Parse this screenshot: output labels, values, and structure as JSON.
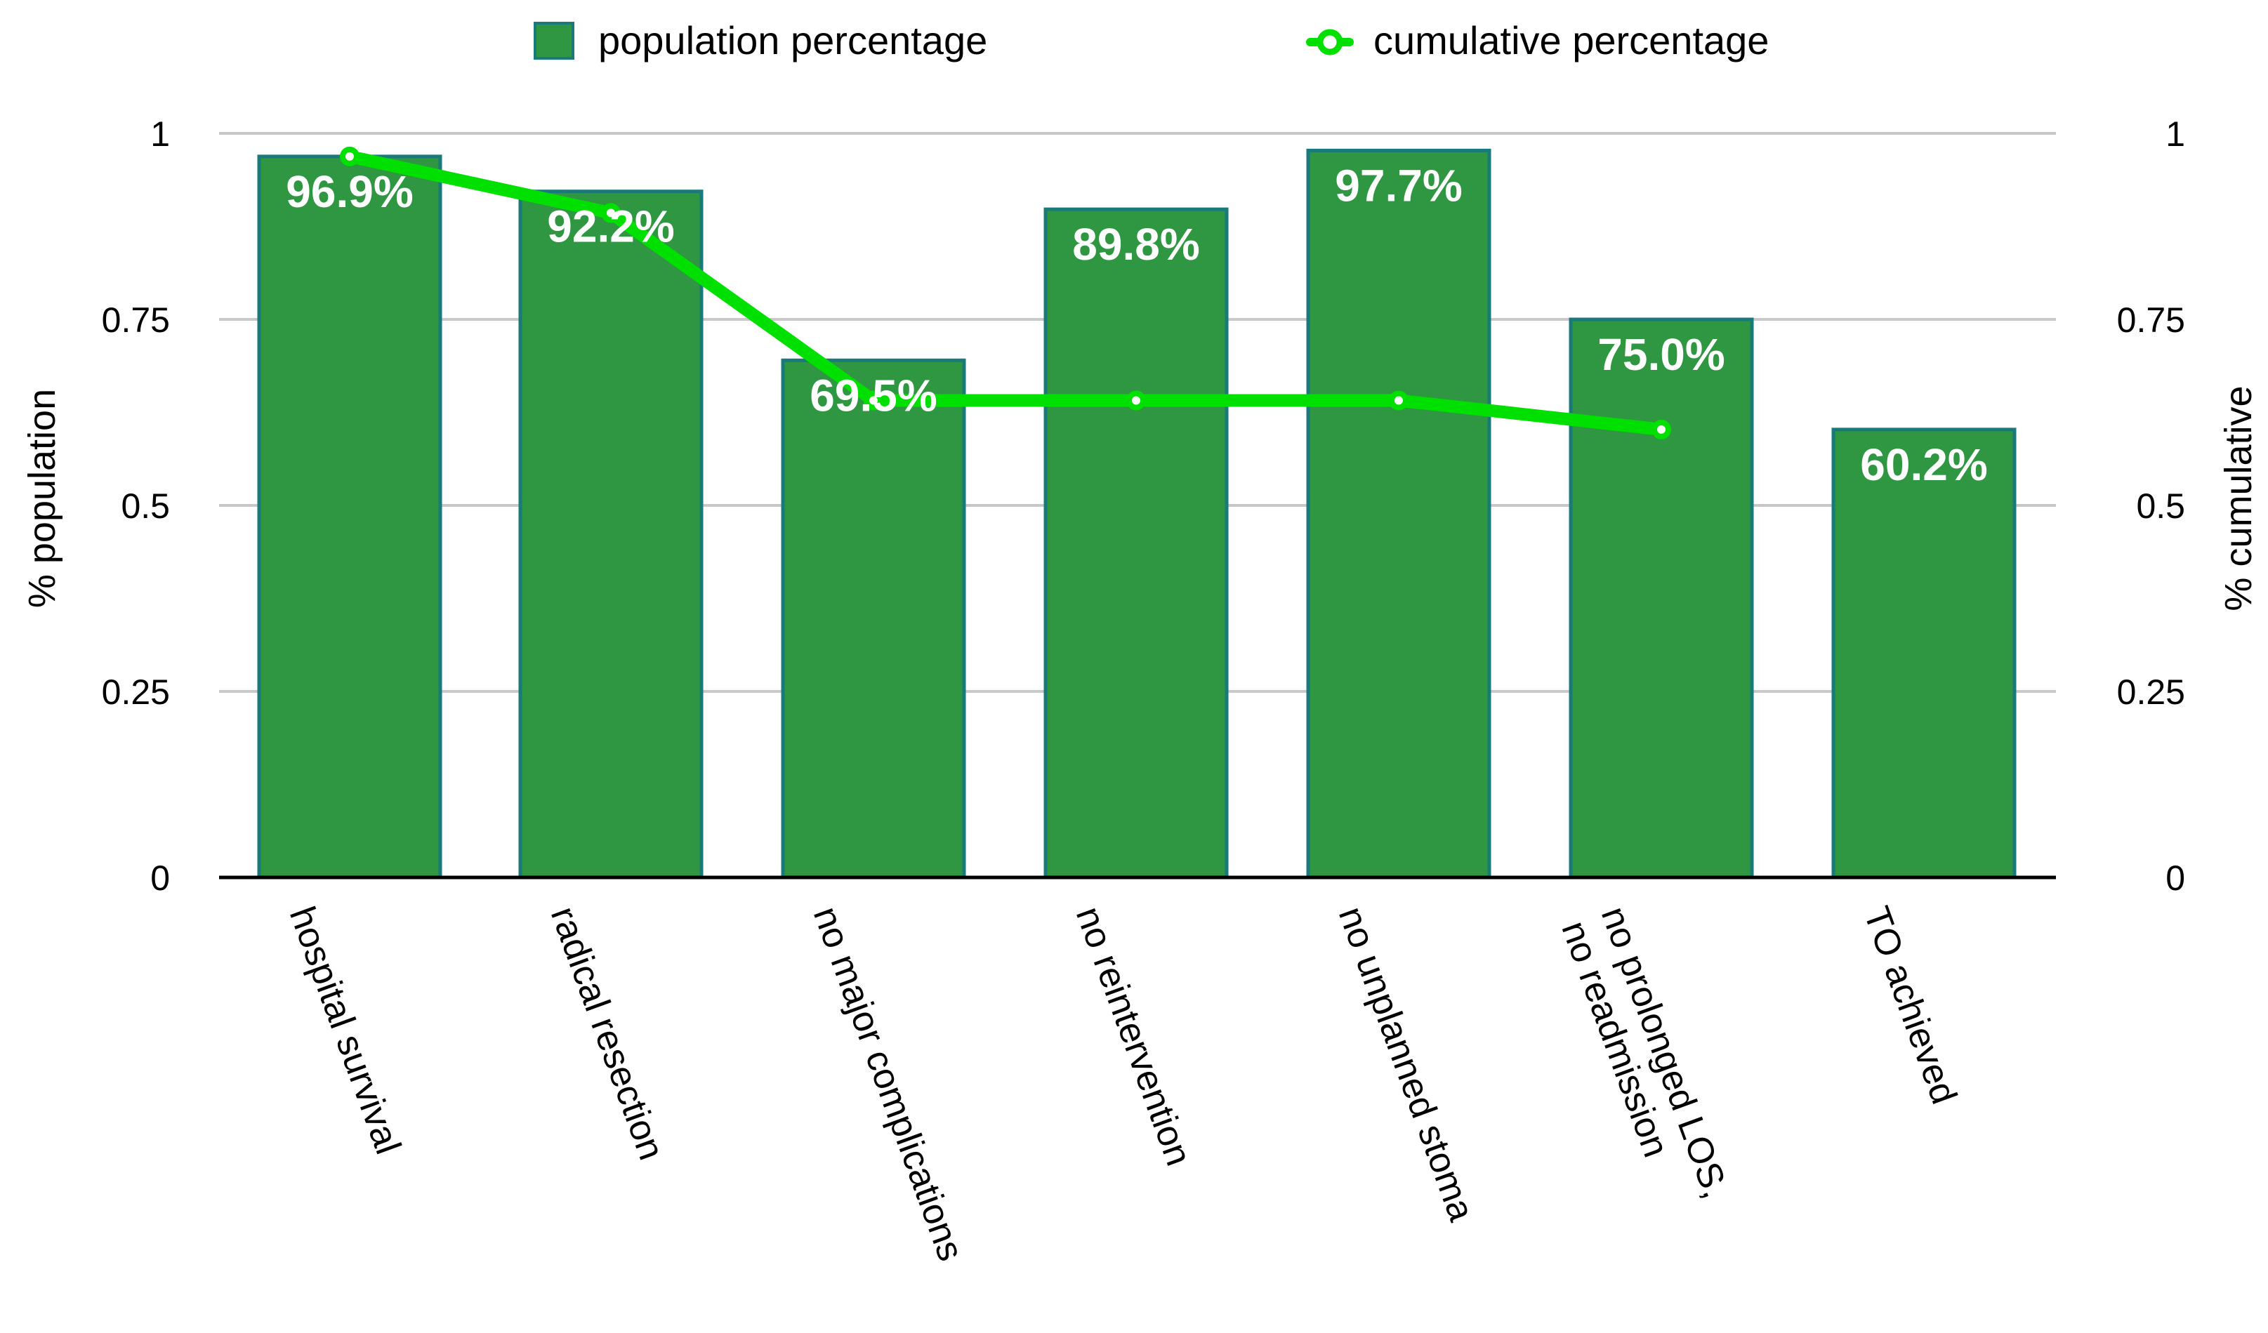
{
  "chart_data": {
    "type": "bar",
    "categories": [
      [
        "hospital survival"
      ],
      [
        "radical resection"
      ],
      [
        "no major complications"
      ],
      [
        "no reintervention"
      ],
      [
        "no unplanned stoma"
      ],
      [
        "no prolonged LOS,",
        "no readmission"
      ],
      [
        "TO achieved"
      ]
    ],
    "series": [
      {
        "name": "population percentage",
        "kind": "bar",
        "axis": "left",
        "values": [
          0.969,
          0.922,
          0.695,
          0.898,
          0.977,
          0.75,
          0.602
        ],
        "labels": [
          "96.9%",
          "92.2%",
          "69.5%",
          "89.8%",
          "97.7%",
          "75.0%",
          "60.2%"
        ],
        "color": "#2f9641",
        "stroke": "#1a7a7a"
      },
      {
        "name": "cumulative percentage",
        "kind": "line",
        "axis": "right",
        "values": [
          0.969,
          0.893,
          0.641,
          0.641,
          0.641,
          0.602,
          null
        ],
        "color": "#00e000"
      }
    ],
    "ylabel": "% population",
    "y2label": "% cumulative",
    "ylim": [
      0,
      1
    ],
    "y2lim": [
      0,
      1
    ],
    "yticks": [
      "0",
      "0.25",
      "0.5",
      "0.75",
      "1"
    ],
    "y2ticks": [
      "0",
      "0.25",
      "0.5",
      "0.75",
      "1"
    ],
    "ytick_values": [
      0,
      0.25,
      0.5,
      0.75,
      1
    ],
    "grid": true,
    "legend": "top-center",
    "colors": {
      "grid": "#c8c8c8",
      "axis": "#000000"
    }
  }
}
